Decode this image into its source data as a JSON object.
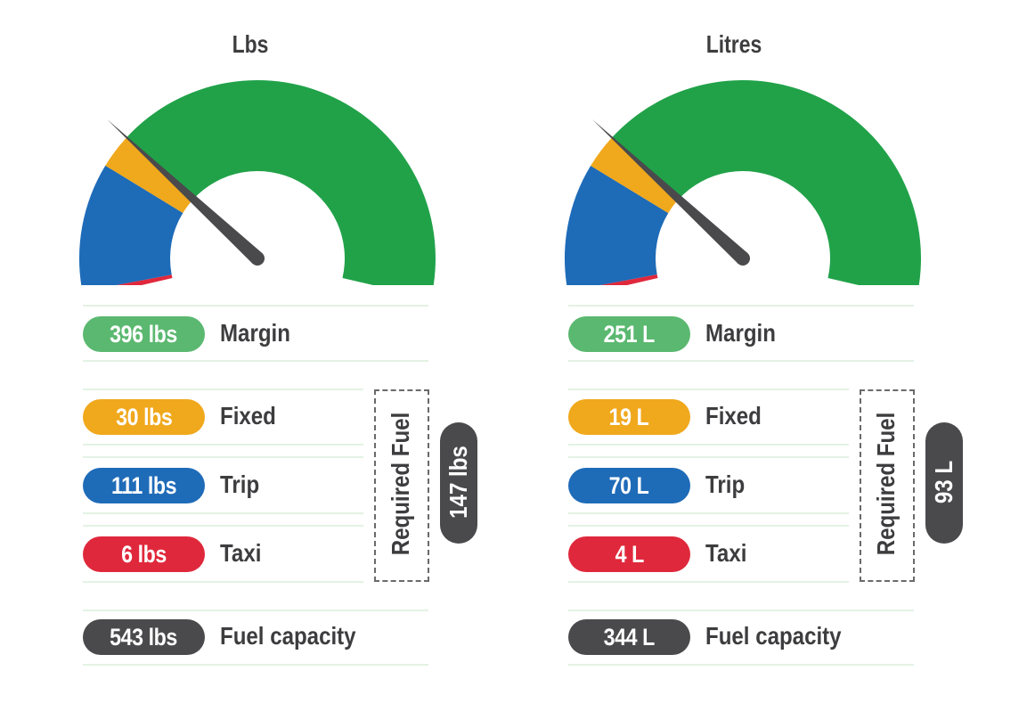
{
  "colors": {
    "margin": "#5bb870",
    "fixed": "#f0a81c",
    "trip": "#1e6bb8",
    "taxi": "#e0283c",
    "capacity": "#4a4a4c",
    "gauge_green": "#21a249",
    "needle": "#4a4a4c"
  },
  "chart_data": [
    {
      "type": "gauge",
      "title": "Lbs",
      "unit": "lbs",
      "segments": [
        {
          "name": "Taxi",
          "value": 6,
          "label": "6 lbs"
        },
        {
          "name": "Trip",
          "value": 111,
          "label": "111 lbs"
        },
        {
          "name": "Fixed",
          "value": 30,
          "label": "30 lbs"
        },
        {
          "name": "Margin",
          "value": 396,
          "label": "396 lbs"
        }
      ],
      "required_fuel": {
        "title": "Required Fuel",
        "value": 147,
        "label": "147 lbs"
      },
      "fuel_capacity": {
        "name": "Fuel capacity",
        "value": 543,
        "label": "543 lbs"
      },
      "needle_value": 147
    },
    {
      "type": "gauge",
      "title": "Litres",
      "unit": "L",
      "segments": [
        {
          "name": "Taxi",
          "value": 4,
          "label": "4 L"
        },
        {
          "name": "Trip",
          "value": 70,
          "label": "70 L"
        },
        {
          "name": "Fixed",
          "value": 19,
          "label": "19 L"
        },
        {
          "name": "Margin",
          "value": 251,
          "label": "251 L"
        }
      ],
      "required_fuel": {
        "title": "Required Fuel",
        "value": 93,
        "label": "93 L"
      },
      "fuel_capacity": {
        "name": "Fuel capacity",
        "value": 344,
        "label": "344 L"
      },
      "needle_value": 93
    }
  ],
  "rows": {
    "margin": "Margin",
    "fixed": "Fixed",
    "trip": "Trip",
    "taxi": "Taxi",
    "capacity": "Fuel capacity"
  }
}
